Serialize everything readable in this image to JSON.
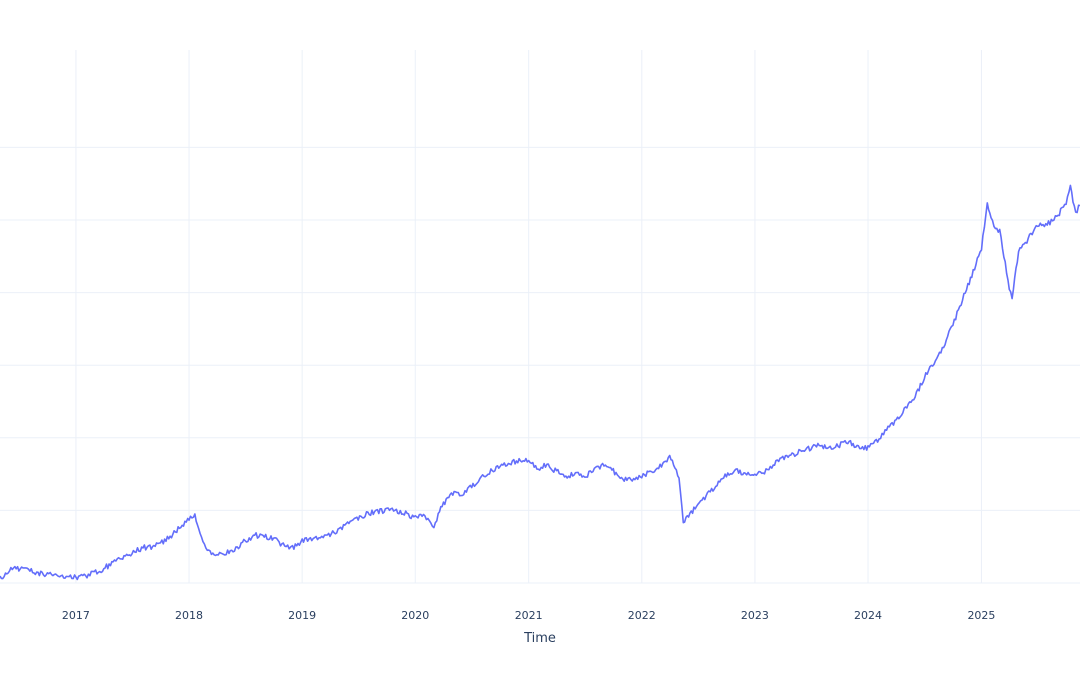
{
  "chart_data": {
    "type": "line",
    "title": "",
    "xlabel": "Time",
    "ylabel": "",
    "x_ticks": [
      "2017",
      "2018",
      "2019",
      "2020",
      "2021",
      "2022",
      "2023",
      "2024",
      "2025"
    ],
    "xlim": [
      "2016-05-01",
      "2025-11-15"
    ],
    "grid": true,
    "series": [
      {
        "color": "#636efa",
        "x": [
          "2016-05-01",
          "2016-06-01",
          "2016-07-01",
          "2016-08-01",
          "2016-09-01",
          "2016-10-01",
          "2016-11-01",
          "2016-12-01",
          "2017-01-01",
          "2017-02-01",
          "2017-03-01",
          "2017-04-01",
          "2017-05-01",
          "2017-06-01",
          "2017-07-01",
          "2017-08-01",
          "2017-09-01",
          "2017-10-01",
          "2017-11-01",
          "2017-12-01",
          "2018-01-01",
          "2018-01-20",
          "2018-02-01",
          "2018-02-15",
          "2018-03-01",
          "2018-04-01",
          "2018-05-01",
          "2018-06-01",
          "2018-07-01",
          "2018-08-01",
          "2018-09-01",
          "2018-10-01",
          "2018-11-01",
          "2018-11-20",
          "2018-12-01",
          "2019-01-01",
          "2019-02-01",
          "2019-03-01",
          "2019-04-01",
          "2019-05-01",
          "2019-06-01",
          "2019-07-01",
          "2019-08-01",
          "2019-09-01",
          "2019-10-01",
          "2019-11-01",
          "2019-12-01",
          "2020-01-01",
          "2020-02-01",
          "2020-03-01",
          "2020-03-15",
          "2020-04-01",
          "2020-05-01",
          "2020-06-01",
          "2020-07-01",
          "2020-08-01",
          "2020-09-01",
          "2020-10-01",
          "2020-11-01",
          "2020-12-01",
          "2021-01-01",
          "2021-02-01",
          "2021-03-01",
          "2021-04-01",
          "2021-05-01",
          "2021-06-01",
          "2021-07-01",
          "2021-08-01",
          "2021-09-01",
          "2021-10-01",
          "2021-11-01",
          "2021-12-01",
          "2022-01-01",
          "2022-02-01",
          "2022-03-01",
          "2022-04-01",
          "2022-05-01",
          "2022-05-15",
          "2022-06-01",
          "2022-07-01",
          "2022-08-01",
          "2022-09-01",
          "2022-10-01",
          "2022-11-01",
          "2022-12-01",
          "2023-01-01",
          "2023-02-01",
          "2023-03-01",
          "2023-04-01",
          "2023-05-01",
          "2023-06-01",
          "2023-07-01",
          "2023-08-01",
          "2023-09-01",
          "2023-10-01",
          "2023-11-01",
          "2023-12-01",
          "2024-01-01",
          "2024-02-01",
          "2024-03-01",
          "2024-04-01",
          "2024-05-01",
          "2024-06-01",
          "2024-07-01",
          "2024-08-01",
          "2024-09-01",
          "2024-10-01",
          "2024-11-01",
          "2024-12-01",
          "2025-01-01",
          "2025-01-20",
          "2025-02-01",
          "2025-03-01",
          "2025-04-01",
          "2025-04-10",
          "2025-05-01",
          "2025-06-01",
          "2025-07-01",
          "2025-08-01",
          "2025-09-01",
          "2025-10-01",
          "2025-10-15",
          "2025-11-01",
          "2025-11-15"
        ],
        "y": [
          0.03,
          0.09,
          0.1,
          0.09,
          0.07,
          0.06,
          0.05,
          0.04,
          0.04,
          0.05,
          0.07,
          0.1,
          0.14,
          0.18,
          0.21,
          0.24,
          0.25,
          0.27,
          0.32,
          0.38,
          0.44,
          0.46,
          0.38,
          0.27,
          0.22,
          0.2,
          0.21,
          0.24,
          0.29,
          0.33,
          0.32,
          0.31,
          0.26,
          0.25,
          0.24,
          0.29,
          0.31,
          0.32,
          0.33,
          0.37,
          0.41,
          0.45,
          0.48,
          0.49,
          0.5,
          0.5,
          0.48,
          0.45,
          0.47,
          0.38,
          0.48,
          0.55,
          0.61,
          0.62,
          0.66,
          0.73,
          0.77,
          0.81,
          0.83,
          0.84,
          0.84,
          0.79,
          0.81,
          0.77,
          0.73,
          0.75,
          0.73,
          0.78,
          0.82,
          0.77,
          0.72,
          0.71,
          0.74,
          0.77,
          0.8,
          0.87,
          0.73,
          0.4,
          0.47,
          0.53,
          0.61,
          0.68,
          0.75,
          0.77,
          0.76,
          0.74,
          0.77,
          0.81,
          0.86,
          0.88,
          0.91,
          0.93,
          0.95,
          0.93,
          0.95,
          0.97,
          0.93,
          0.93,
          0.98,
          1.07,
          1.12,
          1.2,
          1.28,
          1.42,
          1.52,
          1.63,
          1.78,
          1.95,
          2.12,
          2.3,
          2.6,
          2.5,
          2.42,
          2.04,
          1.96,
          2.28,
          2.37,
          2.46,
          2.47,
          2.52,
          2.62,
          2.72,
          2.55,
          2.6
        ]
      }
    ]
  }
}
